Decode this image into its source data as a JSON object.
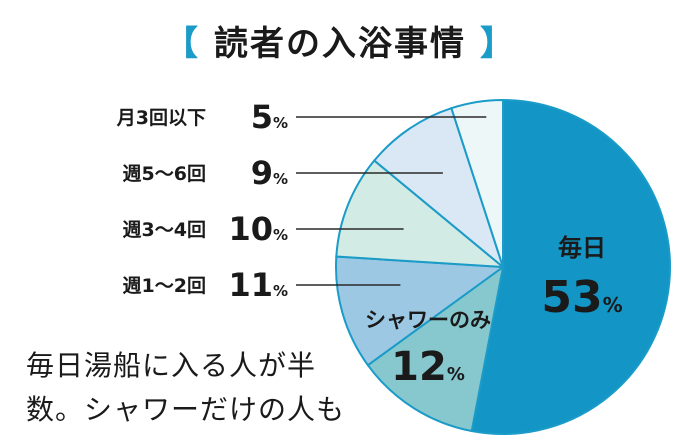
{
  "title": {
    "open_bracket": "【",
    "text": "読者の入浴事情",
    "close_bracket": "】"
  },
  "caption": "毎日湯船に入る人が半数。シャワーだけの人も",
  "colors": {
    "accent": "#1a9bc8",
    "text": "#1a1a1a"
  },
  "chart_data": {
    "type": "pie",
    "title": "読者の入浴事情",
    "unit": "%",
    "direction": "clockwise from 12 o'clock",
    "slices": [
      {
        "label": "毎日",
        "value": 53,
        "color": "#1396c6"
      },
      {
        "label": "シャワーのみ",
        "value": 12,
        "color": "#86c8cd"
      },
      {
        "label": "週1〜2回",
        "value": 11,
        "color": "#9cc8e4"
      },
      {
        "label": "週3〜4回",
        "value": 10,
        "color": "#d2ebe4"
      },
      {
        "label": "週5〜6回",
        "value": 9,
        "color": "#dae7f4"
      },
      {
        "label": "月3回以下",
        "value": 5,
        "color": "#eef7f8"
      }
    ]
  }
}
